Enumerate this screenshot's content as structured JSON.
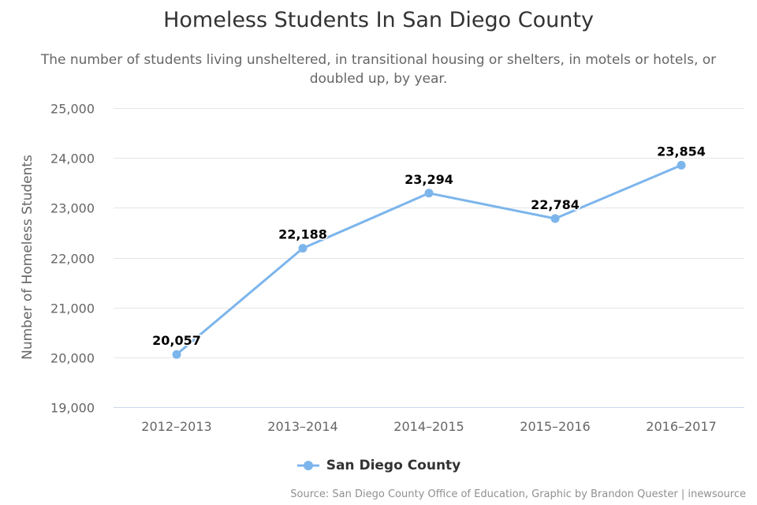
{
  "title": "Homeless Students In San Diego County",
  "subtitle": "The number of students living unsheltered, in transitional housing or shelters, in motels or hotels, or doubled up, by year.",
  "credits": "Source: San Diego County Office of Education, Graphic by Brandon Quester | inewsource",
  "colors": {
    "series": "#7cb5ec",
    "grid": "#e6e6e6",
    "axis_line": "#ccd6eb",
    "tick_text": "#666666",
    "data_label": "#000000"
  },
  "chart_data": {
    "type": "line",
    "title": "Homeless Students In San Diego County",
    "subtitle": "The number of students living unsheltered, in transitional housing or shelters, in motels or hotels, or doubled up, by year.",
    "xlabel": "",
    "ylabel": "Number of Homeless Students",
    "categories": [
      "2012–2013",
      "2013–2014",
      "2014–2015",
      "2015–2016",
      "2016–2017"
    ],
    "ylim": [
      19000,
      25000
    ],
    "yticks": [
      19000,
      20000,
      21000,
      22000,
      23000,
      24000,
      25000
    ],
    "ytick_labels": [
      "19,000",
      "20,000",
      "21,000",
      "22,000",
      "23,000",
      "24,000",
      "25,000"
    ],
    "grid": true,
    "legend": "bottom-center",
    "series": [
      {
        "name": "San Diego County",
        "values": [
          20057,
          22188,
          23294,
          22784,
          23854
        ],
        "labels": [
          "20,057",
          "22,188",
          "23,294",
          "22,784",
          "23,854"
        ]
      }
    ]
  }
}
